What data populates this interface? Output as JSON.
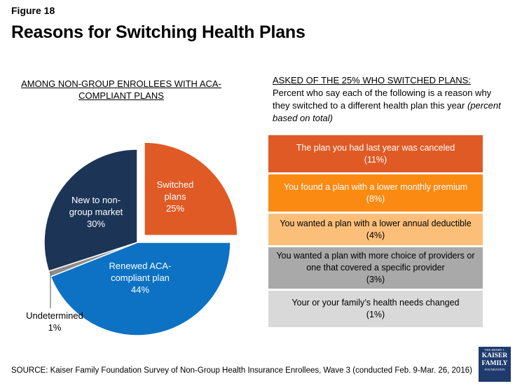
{
  "figure_label": "Figure 18",
  "title": "Reasons for Switching Health Plans",
  "left_heading": "AMONG NON-GROUP ENROLLEES WITH ACA-COMPLIANT PLANS",
  "right_heading": {
    "underlined": "ASKED OF THE 25%  WHO SWITCHED PLANS:",
    "plain": " Percent who say each of the following is a reason why they switched to a different health plan this year ",
    "italic": "(percent based on total)"
  },
  "chart_data": [
    {
      "type": "pie",
      "title": "AMONG NON-GROUP ENROLLEES WITH ACA-COMPLIANT PLANS",
      "slices": [
        {
          "label": "Switched plans",
          "value": 25,
          "display": [
            "Switched",
            "plans",
            "25%"
          ],
          "color": "#e05a25",
          "exploded": true
        },
        {
          "label": "Renewed ACA-compliant plan",
          "value": 44,
          "display": [
            "Renewed ACA-",
            "compliant plan",
            "44%"
          ],
          "color": "#0d72c4",
          "exploded": false
        },
        {
          "label": "Undetermined",
          "value": 1,
          "display": [
            "Undetermined",
            "1%"
          ],
          "color": "#8c8c8c",
          "exploded": false
        },
        {
          "label": "New to non-group market",
          "value": 30,
          "display": [
            "New to non-",
            "group market",
            "30%"
          ],
          "color": "#1c3557",
          "exploded": false
        }
      ]
    },
    {
      "type": "bar",
      "title": "Reasons for switching (percent based on total)",
      "bars": [
        {
          "label": "The plan you had last year was canceled",
          "value_label": "(11%)",
          "value": 11,
          "color": "#e05a25",
          "text_color": "#ffffff"
        },
        {
          "label": "You found a plan with a lower monthly premium",
          "value_label": "(8%)",
          "value": 8,
          "color": "#fb8a13",
          "text_color": "#ffffff"
        },
        {
          "label": "You wanted a plan with a lower annual deductible",
          "value_label": "(4%)",
          "value": 4,
          "color": "#fcbf7a",
          "text_color": "#000000"
        },
        {
          "label": "You wanted a plan with more choice of providers or one that covered a specific provider",
          "value_label": "(3%)",
          "value": 3,
          "color": "#a9a9a9",
          "text_color": "#000000"
        },
        {
          "label": "Your or your family’s health needs changed",
          "value_label": "(1%)",
          "value": 1,
          "color": "#d9d9d9",
          "text_color": "#000000"
        }
      ]
    }
  ],
  "source": "SOURCE: Kaiser Family Foundation Survey of Non-Group Health Insurance Enrollees, Wave 3 (conducted Feb. 9-Mar. 26, 2016)",
  "logo": {
    "line1": "THE HENRY J.",
    "line2": "KAISER",
    "line3": "FAMILY",
    "line4": "FOUNDATION"
  }
}
